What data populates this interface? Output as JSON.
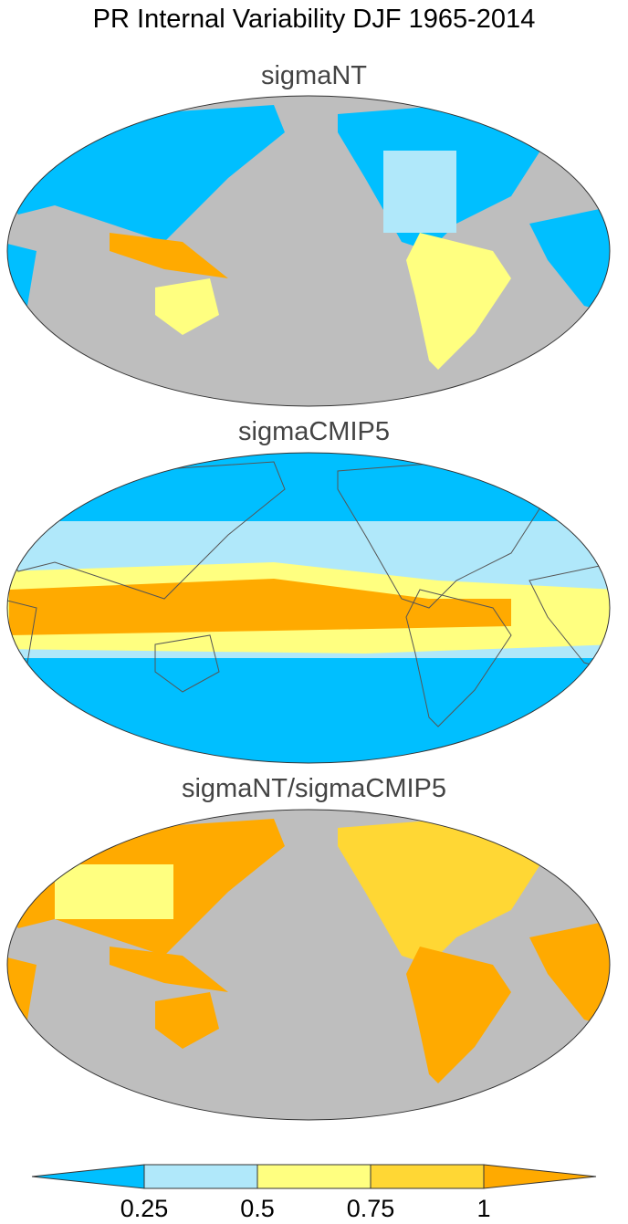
{
  "title": "PR Internal Variability DJF 1965-2014",
  "panels": [
    {
      "title": "sigmaNT"
    },
    {
      "title": "sigmaCMIP5"
    },
    {
      "title": "sigmaNT/sigmaCMIP5"
    }
  ],
  "colorbar": {
    "ticks": [
      0.25,
      0.5,
      0.75,
      1
    ],
    "colors": [
      "#00bfff",
      "#b0e8fa",
      "#ffff80",
      "#ffd734",
      "#ffaa00"
    ]
  }
}
